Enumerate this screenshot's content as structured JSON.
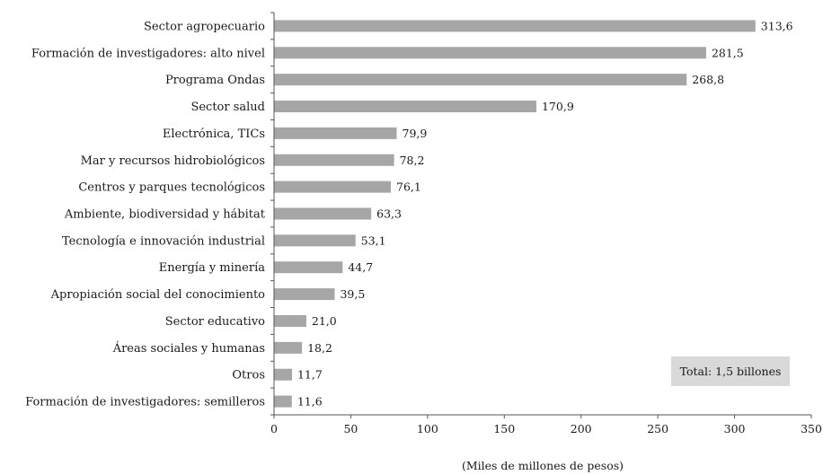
{
  "chart_data": {
    "type": "bar",
    "orientation": "horizontal",
    "categories": [
      "Sector agropecuario",
      "Formación de investigadores: alto nivel",
      "Programa Ondas",
      "Sector salud",
      "Electrónica, TICs",
      "Mar y recursos hidrobiológicos",
      "Centros y parques tecnológicos",
      "Ambiente, biodiversidad y hábitat",
      "Tecnología e innovación industrial",
      "Energía y minería",
      "Apropiación social del conocimiento",
      "Sector educativo",
      "Áreas sociales y humanas",
      "Otros",
      "Formación de investigadores: semilleros"
    ],
    "values": [
      313.6,
      281.5,
      268.8,
      170.9,
      79.9,
      78.2,
      76.1,
      63.3,
      53.1,
      44.7,
      39.5,
      21.0,
      18.2,
      11.7,
      11.6
    ],
    "value_labels": [
      "313,6",
      "281,5",
      "268,8",
      "170,9",
      "79,9",
      "78,2",
      "76,1",
      "63,3",
      "53,1",
      "44,7",
      "39,5",
      "21,0",
      "18,2",
      "11,7",
      "11,6"
    ],
    "xlabel": "(Miles de millones de pesos)",
    "xlim": [
      0,
      350
    ],
    "xticks": [
      0,
      50,
      100,
      150,
      200,
      250,
      300,
      350
    ],
    "grid": false,
    "annotation": "Total: 1,5 billones",
    "colors": {
      "bar": "#a6a6a6",
      "axis": "#555555",
      "annotation_bg": "#d9d9d9"
    }
  }
}
